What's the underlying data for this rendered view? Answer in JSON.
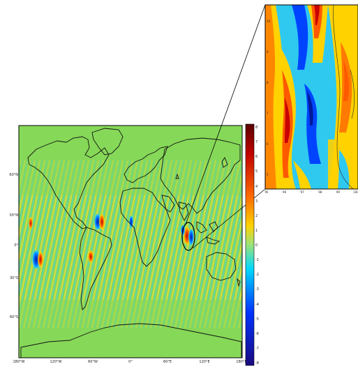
{
  "map": {
    "lat_labels": [
      "60°N",
      "30°N",
      "0°",
      "30°S",
      "60°S"
    ],
    "lon_labels": [
      "180°W",
      "120°W",
      "60°W",
      "0°",
      "60°E",
      "120°E",
      "180°E"
    ]
  },
  "colorbar": {
    "tick_labels": [
      "8",
      "7",
      "6",
      "5",
      "4",
      "3",
      "2",
      "1",
      "0",
      "-1",
      "-2",
      "-3",
      "-4",
      "-5",
      "-6",
      "-7",
      "-8"
    ],
    "colors": [
      "#1a0a80",
      "#0033ff",
      "#00c8ff",
      "#9be37a",
      "#ffd200",
      "#ff6a00",
      "#b00000",
      "#5a0000"
    ]
  },
  "inset": {
    "x_tick_labels": [
      "95",
      "96",
      "97",
      "98",
      "99",
      "100"
    ],
    "y_tick_labels": [
      "10",
      "9",
      "8",
      "7",
      "6",
      "5"
    ]
  },
  "colors": {
    "ocean_green": "#7ed35a",
    "coast": "#000000"
  }
}
